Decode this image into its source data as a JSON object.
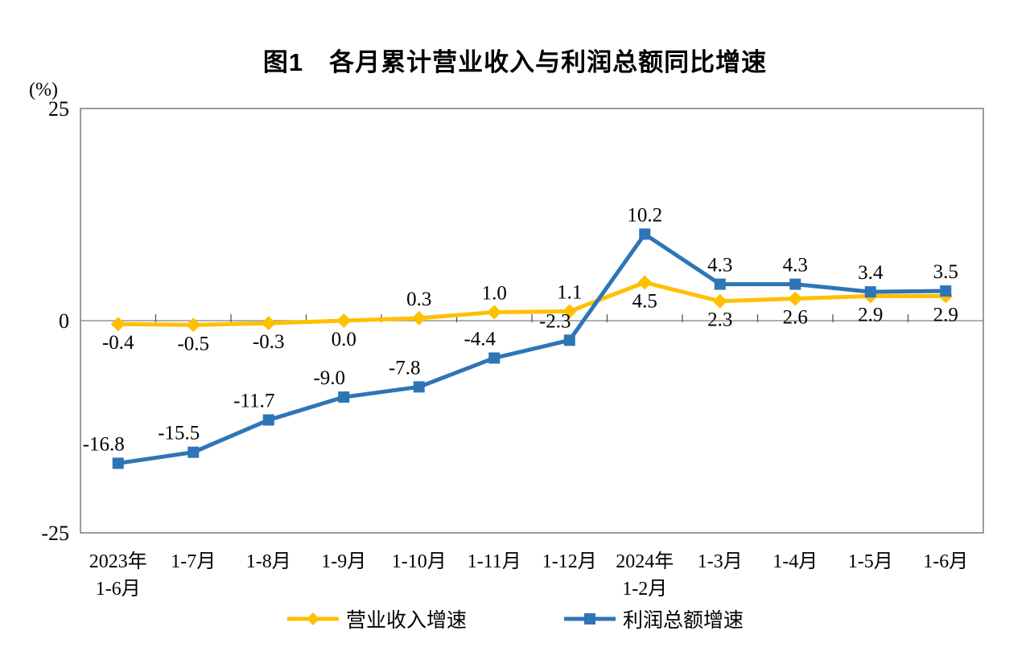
{
  "chart_data": {
    "type": "line",
    "title": "图1　各月累计营业收入与利润总额同比增速",
    "unit_label": "(%)",
    "categories": [
      "2023年\n1-6月",
      "1-7月",
      "1-8月",
      "1-9月",
      "1-10月",
      "1-11月",
      "1-12月",
      "2024年\n1-2月",
      "1-3月",
      "1-4月",
      "1-5月",
      "1-6月"
    ],
    "series": [
      {
        "name": "营业收入增速",
        "color": "#FFC000",
        "marker": "diamond",
        "values": [
          -0.4,
          -0.5,
          -0.3,
          0.0,
          0.3,
          1.0,
          1.1,
          4.5,
          2.3,
          2.6,
          2.9,
          2.9
        ],
        "label_sides": [
          "below",
          "below",
          "below",
          "below",
          "above",
          "above",
          "above",
          "below",
          "below",
          "below",
          "below",
          "below"
        ]
      },
      {
        "name": "利润总额增速",
        "color": "#2E75B6",
        "marker": "square",
        "values": [
          -16.8,
          -15.5,
          -11.7,
          -9.0,
          -7.8,
          -4.4,
          -2.3,
          10.2,
          4.3,
          4.3,
          3.4,
          3.5
        ],
        "label_sides": [
          "above",
          "above",
          "above",
          "above",
          "above",
          "above",
          "above",
          "above",
          "above",
          "above",
          "above",
          "above"
        ]
      }
    ],
    "ylim": [
      -25,
      25
    ],
    "yticks": [
      25,
      0,
      -25
    ],
    "grid": false,
    "legend_position": "bottom",
    "axis_color": "#808080",
    "border_color": "#595959",
    "text_color": "#000000"
  }
}
